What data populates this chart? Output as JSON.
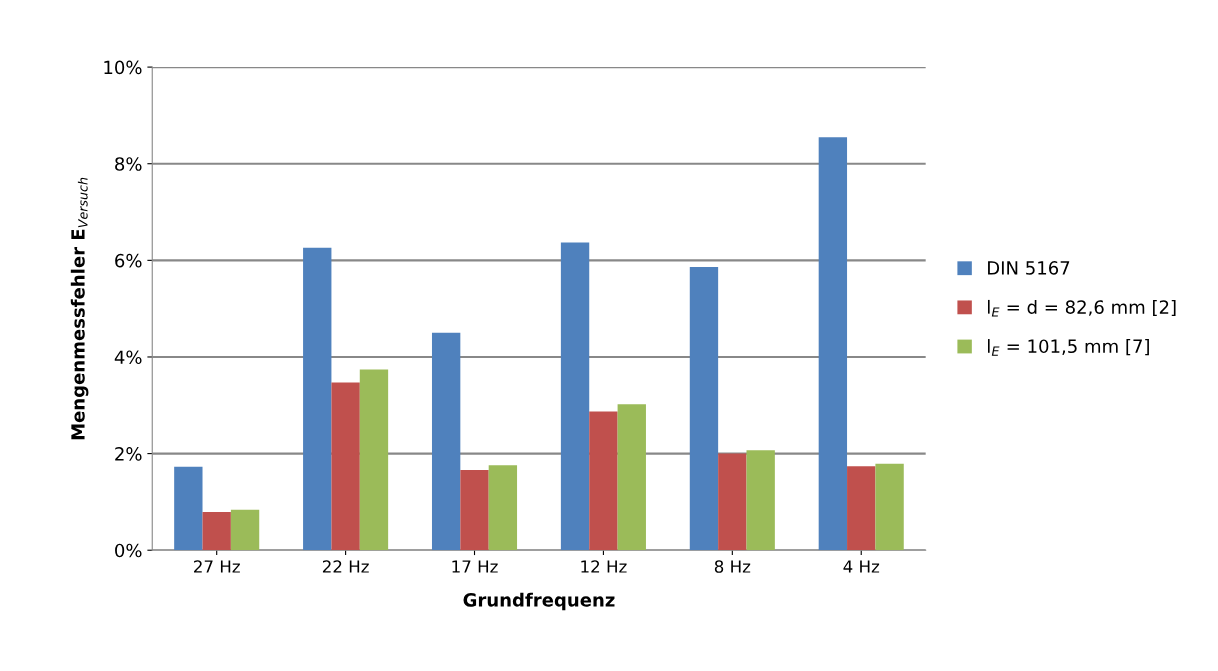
{
  "chart_data": {
    "type": "bar",
    "xlabel": "Grundfrequenz",
    "ylabel": "Mengenmessfehler E$_{Versuch}$",
    "categories": [
      "27 Hz",
      "22 Hz",
      "17 Hz",
      "12 Hz",
      "8 Hz",
      "4 Hz"
    ],
    "series": [
      {
        "name": "DIN 5167",
        "color": "#4f81bd",
        "values": [
          1.73,
          6.26,
          4.5,
          6.37,
          5.86,
          8.55
        ]
      },
      {
        "name": "l$_{E}$ = d = 82,6 mm [2]",
        "color": "#c0504d",
        "values": [
          0.79,
          3.47,
          1.66,
          2.87,
          2.0,
          1.74
        ]
      },
      {
        "name": "l$_{E}$ = 101,5 mm [7]",
        "color": "#9bbb59",
        "values": [
          0.84,
          3.74,
          1.76,
          3.02,
          2.07,
          1.79
        ]
      }
    ],
    "ylim": [
      0,
      10
    ],
    "yticks": [
      {
        "value": 0,
        "label": "0%"
      },
      {
        "value": 2,
        "label": "2%"
      },
      {
        "value": 4,
        "label": "4%"
      },
      {
        "value": 6,
        "label": "6%"
      },
      {
        "value": 8,
        "label": "8%"
      },
      {
        "value": 10,
        "label": "10%"
      }
    ],
    "grid": "y",
    "legend": "right"
  }
}
